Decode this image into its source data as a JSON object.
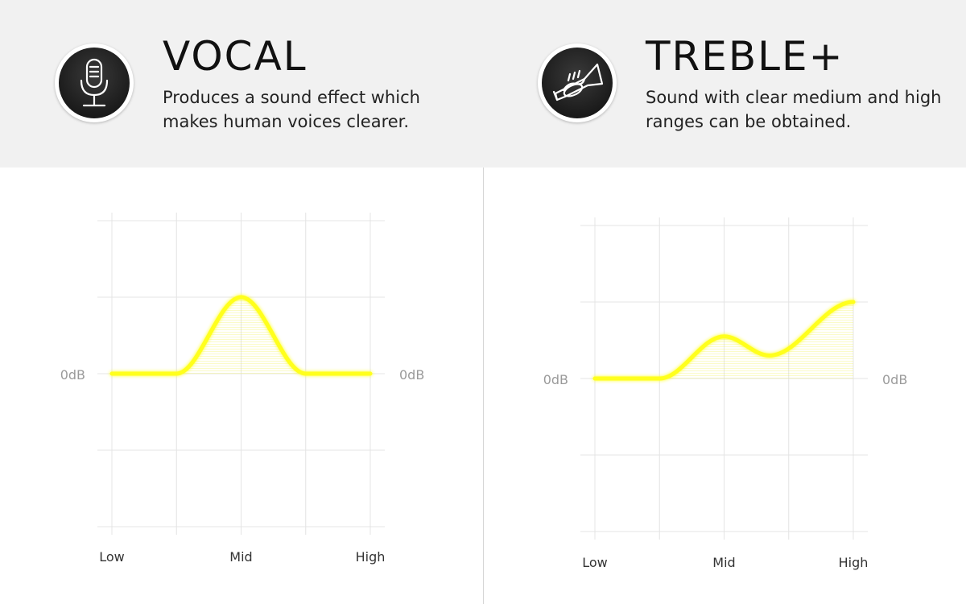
{
  "panels": [
    {
      "title": "VOCAL",
      "description": "Produces a sound effect which makes human voices clearer.",
      "icon": "microphone-icon",
      "chart_data": {
        "type": "area",
        "x_labels": [
          "Low",
          "Mid",
          "High"
        ],
        "zero_label": "0dB",
        "x": [
          0,
          1,
          2,
          3,
          4
        ],
        "values": [
          0,
          0,
          1,
          0,
          0
        ],
        "ylim": [
          -2,
          2
        ],
        "grid": true,
        "line_color": "#ffff1a"
      }
    },
    {
      "title": "TREBLE+",
      "description": "Sound with clear medium and high ranges can be obtained.",
      "icon": "trumpet-icon",
      "chart_data": {
        "type": "area",
        "x_labels": [
          "Low",
          "Mid",
          "High"
        ],
        "zero_label": "0dB",
        "x": [
          0,
          1,
          2,
          2.7,
          4
        ],
        "values": [
          0,
          0,
          0.55,
          0.3,
          1.0
        ],
        "ylim": [
          -2,
          2
        ],
        "grid": true,
        "line_color": "#ffff1a"
      }
    }
  ]
}
